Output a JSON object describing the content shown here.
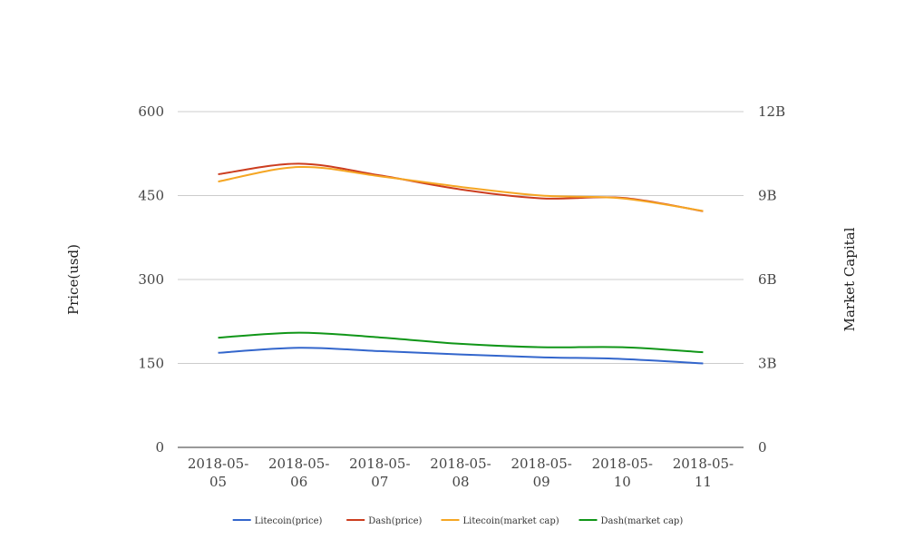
{
  "chart_data": {
    "type": "line",
    "categories": [
      "2018-05-05",
      "2018-05-06",
      "2018-05-07",
      "2018-05-08",
      "2018-05-09",
      "2018-05-10",
      "2018-05-11"
    ],
    "category_label_lines": [
      [
        "2018-05-",
        "05"
      ],
      [
        "2018-05-",
        "06"
      ],
      [
        "2018-05-",
        "07"
      ],
      [
        "2018-05-",
        "08"
      ],
      [
        "2018-05-",
        "09"
      ],
      [
        "2018-05-",
        "10"
      ],
      [
        "2018-05-",
        "11"
      ]
    ],
    "y_left": {
      "label": "Price(usd)",
      "ticks": [
        "0",
        "150",
        "300",
        "450",
        "600"
      ],
      "range": [
        0,
        600
      ]
    },
    "y_right": {
      "label": "Market Capital",
      "ticks": [
        "0",
        "3B",
        "6B",
        "9B",
        "12B"
      ],
      "range": [
        0,
        12000000000
      ]
    },
    "series": [
      {
        "name": "Litecoin(price)",
        "axis": "left",
        "color": "#3366cc",
        "values": [
          169,
          178,
          172,
          166,
          161,
          158,
          150
        ]
      },
      {
        "name": "Dash(price)",
        "axis": "left",
        "color": "#cc3d1f",
        "values": [
          488,
          507,
          486,
          461,
          445,
          446,
          422
        ]
      },
      {
        "name": "Litecoin(market cap)",
        "axis": "right",
        "color": "#f5a623",
        "values": [
          9500000000,
          10020000000,
          9690000000,
          9310000000,
          9000000000,
          8900000000,
          8450000000
        ]
      },
      {
        "name": "Dash(market cap)",
        "axis": "right",
        "color": "#109618",
        "values": [
          3920000000,
          4100000000,
          3930000000,
          3700000000,
          3580000000,
          3580000000,
          3400000000
        ]
      }
    ],
    "grid": true,
    "legend_position": "bottom"
  }
}
